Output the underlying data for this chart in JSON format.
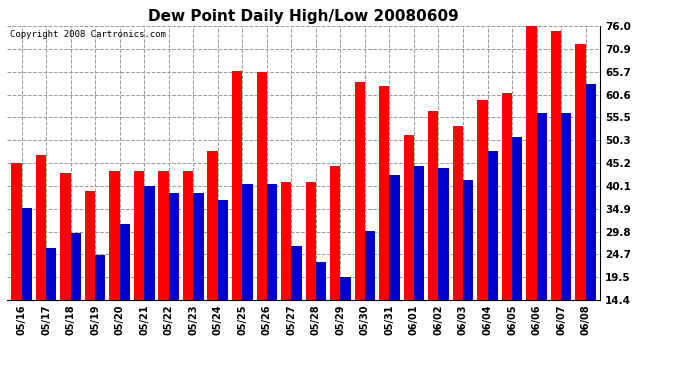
{
  "title": "Dew Point Daily High/Low 20080609",
  "copyright": "Copyright 2008 Cartronics.com",
  "dates": [
    "05/16",
    "05/17",
    "05/18",
    "05/19",
    "05/20",
    "05/21",
    "05/22",
    "05/23",
    "05/24",
    "05/25",
    "05/26",
    "05/27",
    "05/28",
    "05/29",
    "05/30",
    "05/31",
    "06/01",
    "06/02",
    "06/03",
    "06/04",
    "06/05",
    "06/06",
    "06/07",
    "06/08"
  ],
  "highs": [
    45.2,
    47.0,
    43.0,
    39.0,
    43.5,
    43.5,
    43.5,
    43.5,
    48.0,
    66.0,
    65.7,
    41.0,
    41.0,
    44.5,
    63.5,
    62.5,
    51.5,
    57.0,
    53.5,
    59.5,
    60.9,
    76.0,
    75.0,
    72.0
  ],
  "lows": [
    35.0,
    26.0,
    29.5,
    24.5,
    31.5,
    40.0,
    38.5,
    38.5,
    37.0,
    40.5,
    40.5,
    26.5,
    23.0,
    19.5,
    30.0,
    42.5,
    44.5,
    44.0,
    41.5,
    48.0,
    51.0,
    56.5,
    56.5,
    63.0
  ],
  "high_color": "#ff0000",
  "low_color": "#0000cc",
  "bg_color": "#ffffff",
  "plot_bg_color": "#ffffff",
  "grid_color": "#999999",
  "yticks": [
    14.4,
    19.5,
    24.7,
    29.8,
    34.9,
    40.1,
    45.2,
    50.3,
    55.5,
    60.6,
    65.7,
    70.9,
    76.0
  ],
  "ymin": 14.4,
  "ymax": 76.0,
  "bar_width": 0.42
}
